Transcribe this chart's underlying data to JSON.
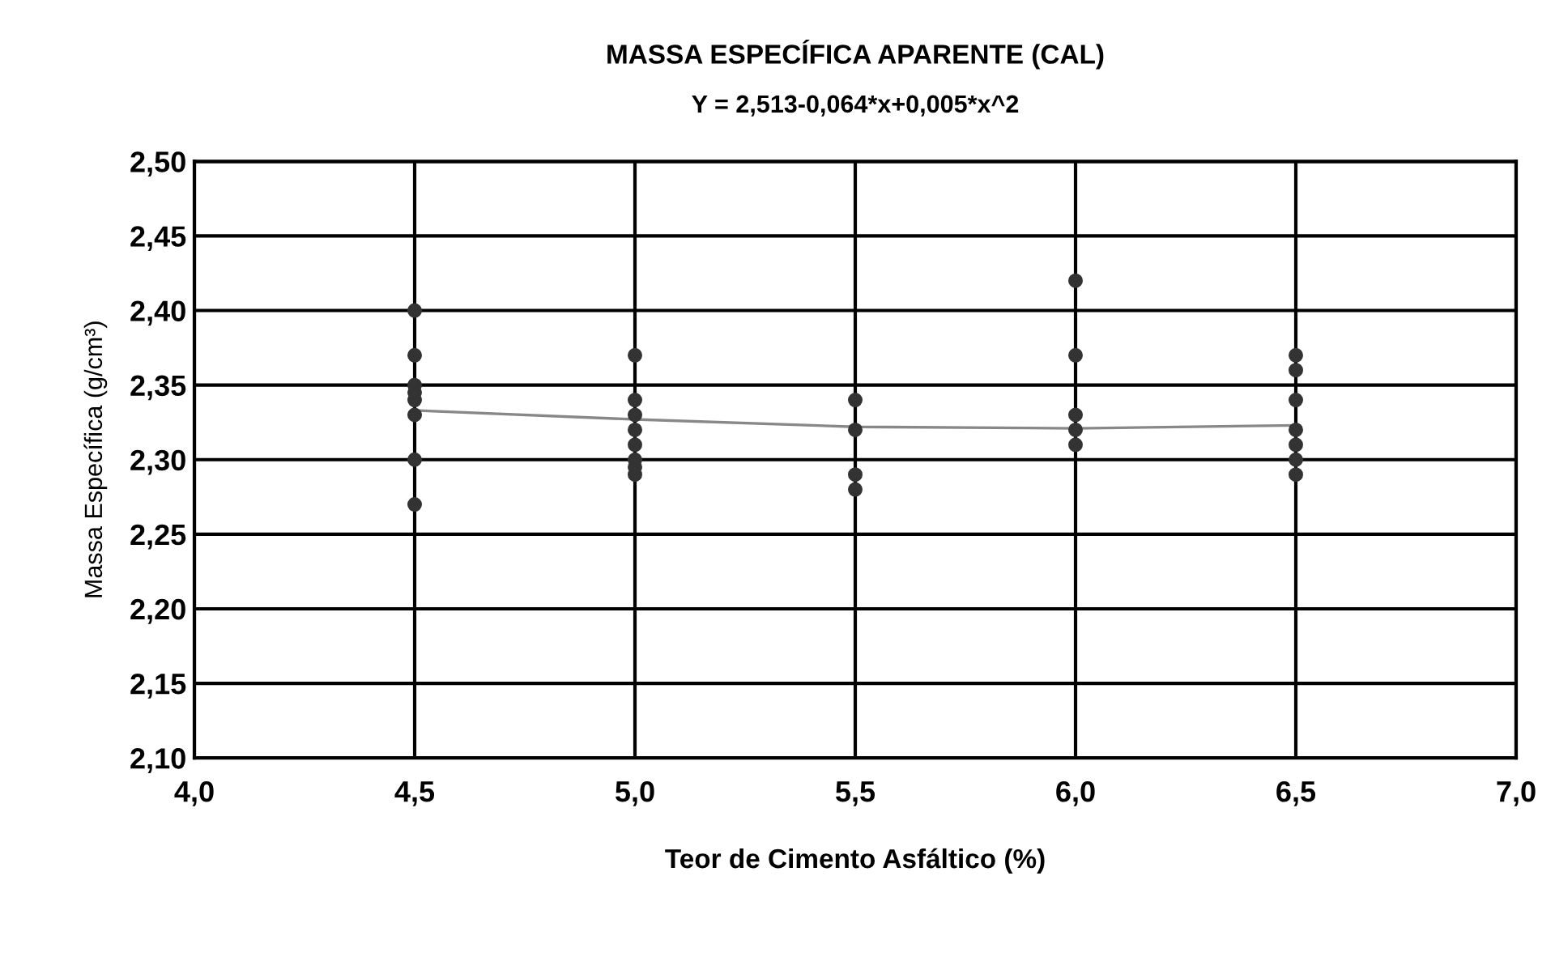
{
  "chart_data": {
    "type": "scatter",
    "title": "MASSA ESPECÍFICA APARENTE (CAL)",
    "subtitle": "Y = 2,513-0,064*x+0,005*x^2",
    "xlabel": "Teor de Cimento Asfáltico (%)",
    "ylabel": "Massa Específica (g/cm³)",
    "series": [
      {
        "color": "#333333",
        "marker": "circle",
        "x": [
          4.5,
          4.5,
          4.5,
          4.5,
          4.5,
          4.5,
          4.5,
          4.5,
          5.0,
          5.0,
          5.0,
          5.0,
          5.0,
          5.0,
          5.0,
          5.0,
          5.5,
          5.5,
          5.5,
          5.5,
          6.0,
          6.0,
          6.0,
          6.0,
          6.0,
          6.5,
          6.5,
          6.5,
          6.5,
          6.5,
          6.5,
          6.5
        ],
        "values": [
          2.4,
          2.37,
          2.35,
          2.345,
          2.34,
          2.33,
          2.3,
          2.27,
          2.37,
          2.34,
          2.33,
          2.32,
          2.31,
          2.3,
          2.295,
          2.29,
          2.34,
          2.32,
          2.29,
          2.28,
          2.42,
          2.37,
          2.33,
          2.32,
          2.31,
          2.37,
          2.36,
          2.34,
          2.32,
          2.31,
          2.3,
          2.29
        ]
      },
      {
        "type": "line",
        "color": "#888888",
        "marker": "none",
        "x": [
          4.5,
          5.0,
          5.5,
          6.0,
          6.5
        ],
        "values": [
          2.333,
          2.327,
          2.322,
          2.321,
          2.323
        ]
      }
    ],
    "xlim": [
      4.0,
      7.0
    ],
    "xticks": [
      {
        "value": 4.0,
        "label": "4,0"
      },
      {
        "value": 4.5,
        "label": "4,5"
      },
      {
        "value": 5.0,
        "label": "5,0"
      },
      {
        "value": 5.5,
        "label": "5,5"
      },
      {
        "value": 6.0,
        "label": "6,0"
      },
      {
        "value": 6.5,
        "label": "6,5"
      },
      {
        "value": 7.0,
        "label": "7,0"
      }
    ],
    "ylim": [
      2.1,
      2.5
    ],
    "yticks": [
      {
        "value": 2.1,
        "label": "2,10"
      },
      {
        "value": 2.15,
        "label": "2,15"
      },
      {
        "value": 2.2,
        "label": "2,20"
      },
      {
        "value": 2.25,
        "label": "2,25"
      },
      {
        "value": 2.3,
        "label": "2,30"
      },
      {
        "value": 2.35,
        "label": "2,35"
      },
      {
        "value": 2.4,
        "label": "2,40"
      },
      {
        "value": 2.45,
        "label": "2,45"
      },
      {
        "value": 2.5,
        "label": "2,50"
      }
    ],
    "grid": true
  }
}
